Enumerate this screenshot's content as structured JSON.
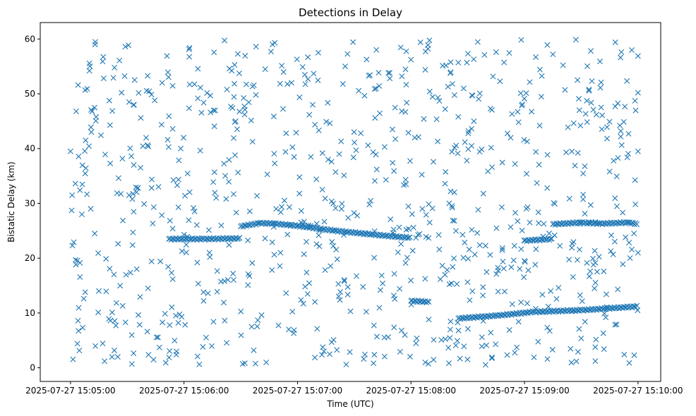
{
  "chart_data": {
    "type": "scatter",
    "title": "Detections in Delay",
    "xlabel": "Time (UTC)",
    "ylabel": "Bistatic Delay (km)",
    "marker": "x",
    "color": "#1f77b4",
    "grid": false,
    "xlim": [
      "2025-07-27 15:04:44",
      "2025-07-27 15:10:12"
    ],
    "ylim": [
      -2.5,
      63
    ],
    "xticks": [
      {
        "value": "2025-07-27 15:05:00",
        "label": "2025-07-27 15:05:00"
      },
      {
        "value": "2025-07-27 15:06:00",
        "label": "2025-07-27 15:06:00"
      },
      {
        "value": "2025-07-27 15:07:00",
        "label": "2025-07-27 15:07:00"
      },
      {
        "value": "2025-07-27 15:08:00",
        "label": "2025-07-27 15:08:00"
      },
      {
        "value": "2025-07-27 15:09:00",
        "label": "2025-07-27 15:09:00"
      },
      {
        "value": "2025-07-27 15:10:00",
        "label": "2025-07-27 15:10:00"
      }
    ],
    "yticks": [
      {
        "value": 0,
        "label": "0"
      },
      {
        "value": 10,
        "label": "10"
      },
      {
        "value": 20,
        "label": "20"
      },
      {
        "value": 30,
        "label": "30"
      },
      {
        "value": 40,
        "label": "40"
      },
      {
        "value": 50,
        "label": "50"
      },
      {
        "value": 60,
        "label": "60"
      }
    ],
    "tracks": [
      {
        "x": [
          "2025-07-27 15:05:52",
          "2025-07-27 15:06:10",
          "2025-07-27 15:06:30"
        ],
        "y": [
          23.5,
          23.5,
          23.6
        ]
      },
      {
        "x": [
          "2025-07-27 15:06:30",
          "2025-07-27 15:06:40",
          "2025-07-27 15:06:48",
          "2025-07-27 15:07:00",
          "2025-07-27 15:07:20",
          "2025-07-27 15:07:40",
          "2025-07-27 15:08:00"
        ],
        "y": [
          25.8,
          26.4,
          26.3,
          25.9,
          25.0,
          24.3,
          23.7
        ]
      },
      {
        "x": [
          "2025-07-27 15:08:00",
          "2025-07-27 15:08:10"
        ],
        "y": [
          12.2,
          12.0
        ]
      },
      {
        "x": [
          "2025-07-27 15:08:25",
          "2025-07-27 15:08:45",
          "2025-07-27 15:09:05",
          "2025-07-27 15:09:30",
          "2025-07-27 15:10:00"
        ],
        "y": [
          9.0,
          9.5,
          10.2,
          10.5,
          11.2
        ]
      },
      {
        "x": [
          "2025-07-27 15:09:00",
          "2025-07-27 15:09:15"
        ],
        "y": [
          23.2,
          23.5
        ]
      },
      {
        "x": [
          "2025-07-27 15:09:15",
          "2025-07-27 15:09:30",
          "2025-07-27 15:09:40",
          "2025-07-27 15:09:55",
          "2025-07-27 15:10:00"
        ],
        "y": [
          26.2,
          26.5,
          26.3,
          26.5,
          26.2
        ]
      }
    ],
    "points": [
      {
        "x": "2025-07-27 15:05:00",
        "y": 39.5
      },
      {
        "x": "2025-07-27 15:05:01",
        "y": 22.3
      },
      {
        "x": "2025-07-27 15:05:03",
        "y": 46.8
      },
      {
        "x": "2025-07-27 15:05:04",
        "y": 51.6
      },
      {
        "x": "2025-07-27 15:05:05",
        "y": 32.4
      },
      {
        "x": "2025-07-27 15:05:06",
        "y": 28.0
      },
      {
        "x": "2025-07-27 15:05:07",
        "y": 12.6
      },
      {
        "x": "2025-07-27 15:05:08",
        "y": 41.5
      },
      {
        "x": "2025-07-27 15:05:10",
        "y": 54.2
      },
      {
        "x": "2025-07-27 15:05:11",
        "y": 43.0
      },
      {
        "x": "2025-07-27 15:05:13",
        "y": 59.0
      },
      {
        "x": "2025-07-27 15:05:15",
        "y": 14.0
      },
      {
        "x": "2025-07-27 15:05:17",
        "y": 55.9
      },
      {
        "x": "2025-07-27 15:05:18",
        "y": 1.2
      },
      {
        "x": "2025-07-27 15:05:21",
        "y": 37.3
      },
      {
        "x": "2025-07-27 15:05:22",
        "y": 10.1
      },
      {
        "x": "2025-07-27 15:05:25",
        "y": 2.0
      },
      {
        "x": "2025-07-27 15:05:27",
        "y": 50.2
      },
      {
        "x": "2025-07-27 15:05:29",
        "y": 58.6
      },
      {
        "x": "2025-07-27 15:05:31",
        "y": 48.5
      },
      {
        "x": "2025-07-27 15:05:33",
        "y": 24.7
      },
      {
        "x": "2025-07-27 15:05:35",
        "y": 18.0
      },
      {
        "x": "2025-07-27 15:05:37",
        "y": 36.5
      },
      {
        "x": "2025-07-27 15:05:41",
        "y": 14.5
      },
      {
        "x": "2025-07-27 15:05:44",
        "y": 29.3
      },
      {
        "x": "2025-07-27 15:05:47",
        "y": 3.7
      },
      {
        "x": "2025-07-27 15:05:51",
        "y": 56.9
      },
      {
        "x": "2025-07-27 15:05:54",
        "y": 43.6
      },
      {
        "x": "2025-07-27 15:05:57",
        "y": 8.2
      },
      {
        "x": "2025-07-27 15:06:00",
        "y": 24.3
      },
      {
        "x": "2025-07-27 15:06:03",
        "y": 51.7
      },
      {
        "x": "2025-07-27 15:06:07",
        "y": 19.2
      },
      {
        "x": "2025-07-27 15:06:10",
        "y": 3.8
      },
      {
        "x": "2025-07-27 15:06:14",
        "y": 46.6
      },
      {
        "x": "2025-07-27 15:06:17",
        "y": 31.0
      },
      {
        "x": "2025-07-27 15:06:21",
        "y": 11.9
      },
      {
        "x": "2025-07-27 15:06:24",
        "y": 54.6
      },
      {
        "x": "2025-07-27 15:06:27",
        "y": 38.8
      },
      {
        "x": "2025-07-27 15:06:31",
        "y": 0.7
      },
      {
        "x": "2025-07-27 15:06:34",
        "y": 17.1
      },
      {
        "x": "2025-07-27 15:06:38",
        "y": 49.8
      },
      {
        "x": "2025-07-27 15:06:41",
        "y": 9.6
      },
      {
        "x": "2025-07-27 15:06:44",
        "y": 35.3
      },
      {
        "x": "2025-07-27 15:06:48",
        "y": 59.3
      },
      {
        "x": "2025-07-27 15:06:51",
        "y": 21.0
      },
      {
        "x": "2025-07-27 15:06:54",
        "y": 42.8
      },
      {
        "x": "2025-07-27 15:06:58",
        "y": 6.3
      },
      {
        "x": "2025-07-27 15:07:01",
        "y": 31.8
      },
      {
        "x": "2025-07-27 15:07:04",
        "y": 14.8
      },
      {
        "x": "2025-07-27 15:07:08",
        "y": 48.0
      },
      {
        "x": "2025-07-27 15:07:11",
        "y": 57.5
      },
      {
        "x": "2025-07-27 15:07:14",
        "y": 3.0
      },
      {
        "x": "2025-07-27 15:07:18",
        "y": 37.6
      },
      {
        "x": "2025-07-27 15:07:21",
        "y": 19.8
      },
      {
        "x": "2025-07-27 15:07:24",
        "y": 51.8
      },
      {
        "x": "2025-07-27 15:07:28",
        "y": 10.3
      },
      {
        "x": "2025-07-27 15:07:31",
        "y": 39.7
      },
      {
        "x": "2025-07-27 15:07:35",
        "y": 1.6
      },
      {
        "x": "2025-07-27 15:07:38",
        "y": 29.8
      },
      {
        "x": "2025-07-27 15:07:41",
        "y": 45.6
      },
      {
        "x": "2025-07-27 15:07:45",
        "y": 15.4
      },
      {
        "x": "2025-07-27 15:07:48",
        "y": 53.8
      },
      {
        "x": "2025-07-27 15:07:51",
        "y": 35.9
      },
      {
        "x": "2025-07-27 15:07:55",
        "y": 6.8
      },
      {
        "x": "2025-07-27 15:07:58",
        "y": 20.1
      },
      {
        "x": "2025-07-27 15:08:02",
        "y": 42.0
      },
      {
        "x": "2025-07-27 15:08:05",
        "y": 59.4
      },
      {
        "x": "2025-07-27 15:08:08",
        "y": 27.9
      },
      {
        "x": "2025-07-27 15:08:12",
        "y": 5.1
      },
      {
        "x": "2025-07-27 15:08:15",
        "y": 48.7
      },
      {
        "x": "2025-07-27 15:08:18",
        "y": 33.6
      },
      {
        "x": "2025-07-27 15:08:22",
        "y": 18.4
      },
      {
        "x": "2025-07-27 15:08:25",
        "y": 55.7
      },
      {
        "x": "2025-07-27 15:08:28",
        "y": 3.9
      },
      {
        "x": "2025-07-27 15:08:32",
        "y": 40.5
      },
      {
        "x": "2025-07-27 15:08:35",
        "y": 24.6
      },
      {
        "x": "2025-07-27 15:08:38",
        "y": 13.2
      },
      {
        "x": "2025-07-27 15:08:42",
        "y": 47.3
      },
      {
        "x": "2025-07-27 15:08:45",
        "y": 57.6
      },
      {
        "x": "2025-07-27 15:08:48",
        "y": 29.3
      },
      {
        "x": "2025-07-27 15:08:52",
        "y": 6.9
      },
      {
        "x": "2025-07-27 15:08:55",
        "y": 37.2
      },
      {
        "x": "2025-07-27 15:08:58",
        "y": 50.1
      },
      {
        "x": "2025-07-27 15:09:02",
        "y": 17.8
      },
      {
        "x": "2025-07-27 15:09:05",
        "y": 1.9
      },
      {
        "x": "2025-07-27 15:09:08",
        "y": 44.2
      },
      {
        "x": "2025-07-27 15:09:12",
        "y": 32.8
      },
      {
        "x": "2025-07-27 15:09:15",
        "y": 57.2
      },
      {
        "x": "2025-07-27 15:09:18",
        "y": 14.6
      },
      {
        "x": "2025-07-27 15:09:22",
        "y": 39.3
      },
      {
        "x": "2025-07-27 15:09:25",
        "y": 21.9
      },
      {
        "x": "2025-07-27 15:09:28",
        "y": 52.5
      },
      {
        "x": "2025-07-27 15:09:32",
        "y": 8.4
      },
      {
        "x": "2025-07-27 15:09:35",
        "y": 29.7
      },
      {
        "x": "2025-07-27 15:09:38",
        "y": 46.2
      },
      {
        "x": "2025-07-27 15:09:42",
        "y": 3.4
      },
      {
        "x": "2025-07-27 15:09:45",
        "y": 35.8
      },
      {
        "x": "2025-07-27 15:09:48",
        "y": 59.4
      },
      {
        "x": "2025-07-27 15:09:52",
        "y": 18.9
      },
      {
        "x": "2025-07-27 15:09:55",
        "y": 42.7
      },
      {
        "x": "2025-07-27 15:09:58",
        "y": 2.3
      },
      {
        "x": "2025-07-27 15:10:00",
        "y": 56.9
      },
      {
        "x": "2025-07-27 15:10:00",
        "y": 39.5
      },
      {
        "x": "2025-07-27 15:10:00",
        "y": 21.0
      },
      {
        "x": "2025-07-27 15:10:00",
        "y": 50.2
      }
    ]
  }
}
